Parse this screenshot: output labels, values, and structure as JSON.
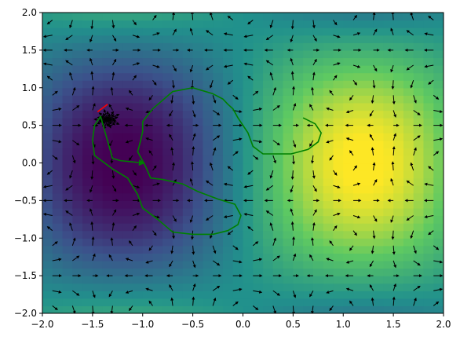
{
  "chart_data": {
    "type": "heatmap",
    "title": "",
    "xlabel": "",
    "ylabel": "",
    "xlim": [
      -2.0,
      2.0
    ],
    "ylim": [
      -2.0,
      2.0
    ],
    "grid": false,
    "colormap": "viridis",
    "heatmap_field": "smooth scalar field: minimum near (-1.2, 0.2), maximum near (1.2, 0.5)",
    "x_tick_labels": [
      "−2.0",
      "−1.5",
      "−1.0",
      "−0.5",
      "0.0",
      "0.5",
      "1.0",
      "1.5",
      "2.0"
    ],
    "y_tick_labels": [
      "−2.0",
      "−1.5",
      "−1.0",
      "−0.5",
      "0.0",
      "0.5",
      "1.0",
      "1.5",
      "2.0"
    ],
    "x_ticks": [
      -2.0,
      -1.5,
      -1.0,
      -0.5,
      0.0,
      0.5,
      1.0,
      1.5,
      2.0
    ],
    "y_ticks": [
      -2.0,
      -1.5,
      -1.0,
      -0.5,
      0.0,
      0.5,
      1.0,
      1.5,
      2.0
    ],
    "quiver": {
      "color": "#000000",
      "grid_x_range": [
        -1.9,
        1.9
      ],
      "grid_y_range": [
        -1.9,
        1.9
      ],
      "grid_n": 20,
      "pattern": "circulating vortex cells"
    },
    "series": [
      {
        "color": "#008000",
        "x": [
          0.6,
          0.72,
          0.78,
          0.75,
          0.65,
          0.48,
          0.2,
          0.1,
          0.05,
          -0.05,
          -0.1,
          -0.15,
          -0.2,
          -0.3,
          -0.5,
          -0.7,
          -0.9,
          -1.0,
          -1.0,
          -1.02,
          -1.05,
          -0.97,
          -0.92,
          -0.8,
          -0.6,
          -0.45,
          -0.25,
          -0.08,
          -0.02,
          -0.05,
          -0.15,
          -0.3,
          -0.5,
          -0.7,
          -0.85,
          -1.0,
          -1.05,
          -1.15,
          -1.3,
          -1.48,
          -1.5,
          -1.48,
          -1.42,
          -1.3,
          -1.22,
          -1.0
        ],
        "y": [
          0.6,
          0.52,
          0.4,
          0.28,
          0.18,
          0.12,
          0.12,
          0.22,
          0.4,
          0.6,
          0.72,
          0.78,
          0.85,
          0.92,
          1.0,
          0.95,
          0.72,
          0.55,
          0.42,
          0.3,
          0.15,
          -0.05,
          -0.2,
          -0.22,
          -0.28,
          -0.38,
          -0.48,
          -0.55,
          -0.7,
          -0.82,
          -0.9,
          -0.95,
          -0.95,
          -0.92,
          -0.75,
          -0.6,
          -0.42,
          -0.2,
          -0.08,
          0.1,
          0.3,
          0.5,
          0.62,
          0.06,
          0.03,
          0.0
        ],
        "arrow_at_end": true
      },
      {
        "color": "#ff0000",
        "x": [
          -1.45,
          -1.4,
          -1.35
        ],
        "y": [
          0.68,
          0.73,
          0.78
        ]
      }
    ],
    "burst": {
      "center": [
        -1.35,
        0.58
      ],
      "radius": 0.13,
      "color": "#000000"
    }
  }
}
